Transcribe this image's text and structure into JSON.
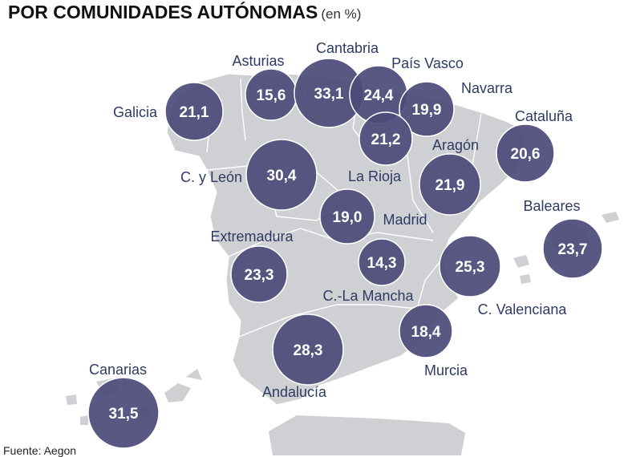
{
  "title": "POR COMUNIDADES AUTÓNOMAS",
  "unit": "(en %)",
  "source": "Fuente: Aegon",
  "colors": {
    "bubble": "#4b4a78",
    "bubble_stroke": "#ffffff",
    "map_land": "#cfd0d3",
    "label": "#2e3a64"
  },
  "regions": [
    {
      "name": "Galicia",
      "value": "21,1"
    },
    {
      "name": "Asturias",
      "value": "15,6"
    },
    {
      "name": "Cantabria",
      "value": "33,1"
    },
    {
      "name": "País Vasco",
      "value": "24,4"
    },
    {
      "name": "Navarra",
      "value": "19,9"
    },
    {
      "name": "La Rioja",
      "value": "21,2"
    },
    {
      "name": "Cataluña",
      "value": "20,6"
    },
    {
      "name": "Aragón",
      "value": "21,9"
    },
    {
      "name": "C. y León",
      "value": "30,4"
    },
    {
      "name": "Madrid",
      "value": "19,0"
    },
    {
      "name": "Baleares",
      "value": "23,7"
    },
    {
      "name": "Extremadura",
      "value": "23,3"
    },
    {
      "name": "C.-La Mancha",
      "value": "14,3"
    },
    {
      "name": "C. Valenciana",
      "value": "25,3"
    },
    {
      "name": "Andalucía",
      "value": "28,3"
    },
    {
      "name": "Murcia",
      "value": "18,4"
    },
    {
      "name": "Canarias",
      "value": "31,5"
    }
  ]
}
